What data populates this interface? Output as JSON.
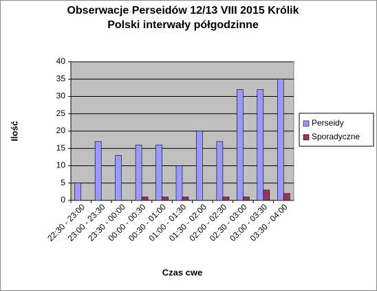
{
  "chart_data": {
    "type": "bar",
    "title": "Obserwacje Perseidów 12/13 VIII 2015 Królik",
    "subtitle": "Polski interwały półgodzinne",
    "x_label": "Czas cwe",
    "y_label": "Ilość",
    "categories": [
      "22:30 - 23:00",
      "23:00 - 23:30",
      "23:30 - 00:00",
      "00:00 - 00:30",
      "00:30 - 01:00",
      "01:00 - 01:30",
      "01:30 - 02:00",
      "02:00 - 02:30",
      "02:30 - 03:00",
      "03:00 - 03:30",
      "03:30 - 04:00"
    ],
    "series": [
      {
        "name": "Perseidy",
        "color": "#9999ff",
        "values": [
          5,
          17,
          13,
          16,
          16,
          10,
          20,
          17,
          32,
          32,
          35
        ]
      },
      {
        "name": "Sporadyczne",
        "color": "#993366",
        "values": [
          0,
          0,
          0,
          1,
          1,
          1,
          0,
          1,
          1,
          3,
          2
        ]
      }
    ],
    "ylim": [
      0,
      40
    ],
    "yticks": [
      0,
      5,
      10,
      15,
      20,
      25,
      30,
      35,
      40
    ],
    "grid": true,
    "legend": "right"
  }
}
